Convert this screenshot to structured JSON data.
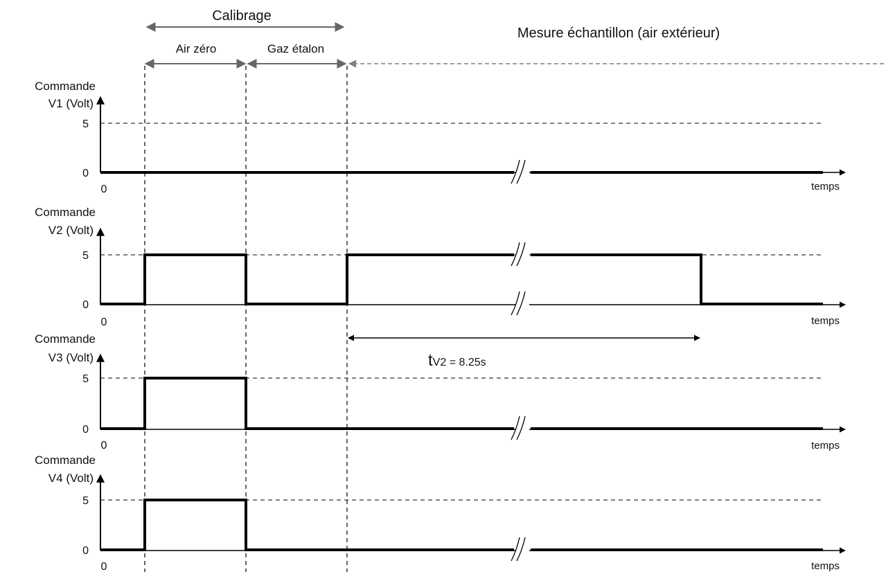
{
  "header": {
    "calibrage_label": "Calibrage",
    "air_zero_label": "Air zéro",
    "gaz_etalon_label": "Gaz étalon",
    "mesure_label": "Mesure échantillon (air extérieur)"
  },
  "panels": [
    {
      "id": "v1",
      "title_line1": "Commande",
      "title_line2": "V1 (Volt)",
      "y_high": "5",
      "y_low": "0",
      "x_origin": "0",
      "x_label": "temps",
      "signal": "always-low",
      "high_intervals": []
    },
    {
      "id": "v2",
      "title_line1": "Commande",
      "title_line2": "V2 (Volt)",
      "y_high": "5",
      "y_low": "0",
      "x_origin": "0",
      "x_label": "temps",
      "high_intervals": [
        [
          "calib-start",
          "air-zero-end"
        ],
        [
          "mesure-start",
          "after-break-fall"
        ]
      ]
    },
    {
      "id": "v3",
      "title_line1": "Commande",
      "title_line2": "V3 (Volt)",
      "y_high": "5",
      "y_low": "0",
      "x_origin": "0",
      "x_label": "temps",
      "high_intervals": [
        [
          "calib-start",
          "air-zero-end"
        ]
      ]
    },
    {
      "id": "v4",
      "title_line1": "Commande",
      "title_line2": "V4 (Volt)",
      "y_high": "5",
      "y_low": "0",
      "x_origin": "0",
      "x_label": "temps",
      "high_intervals": [
        [
          "calib-start",
          "air-zero-end"
        ]
      ]
    }
  ],
  "duration": {
    "symbol": "t",
    "subscript": "V2 = 8.25s"
  },
  "colors": {
    "signal": "#000000",
    "dashed": "#000000",
    "mesure_arrow": "#7f7f7f",
    "bracket_arrows": "#666666"
  }
}
